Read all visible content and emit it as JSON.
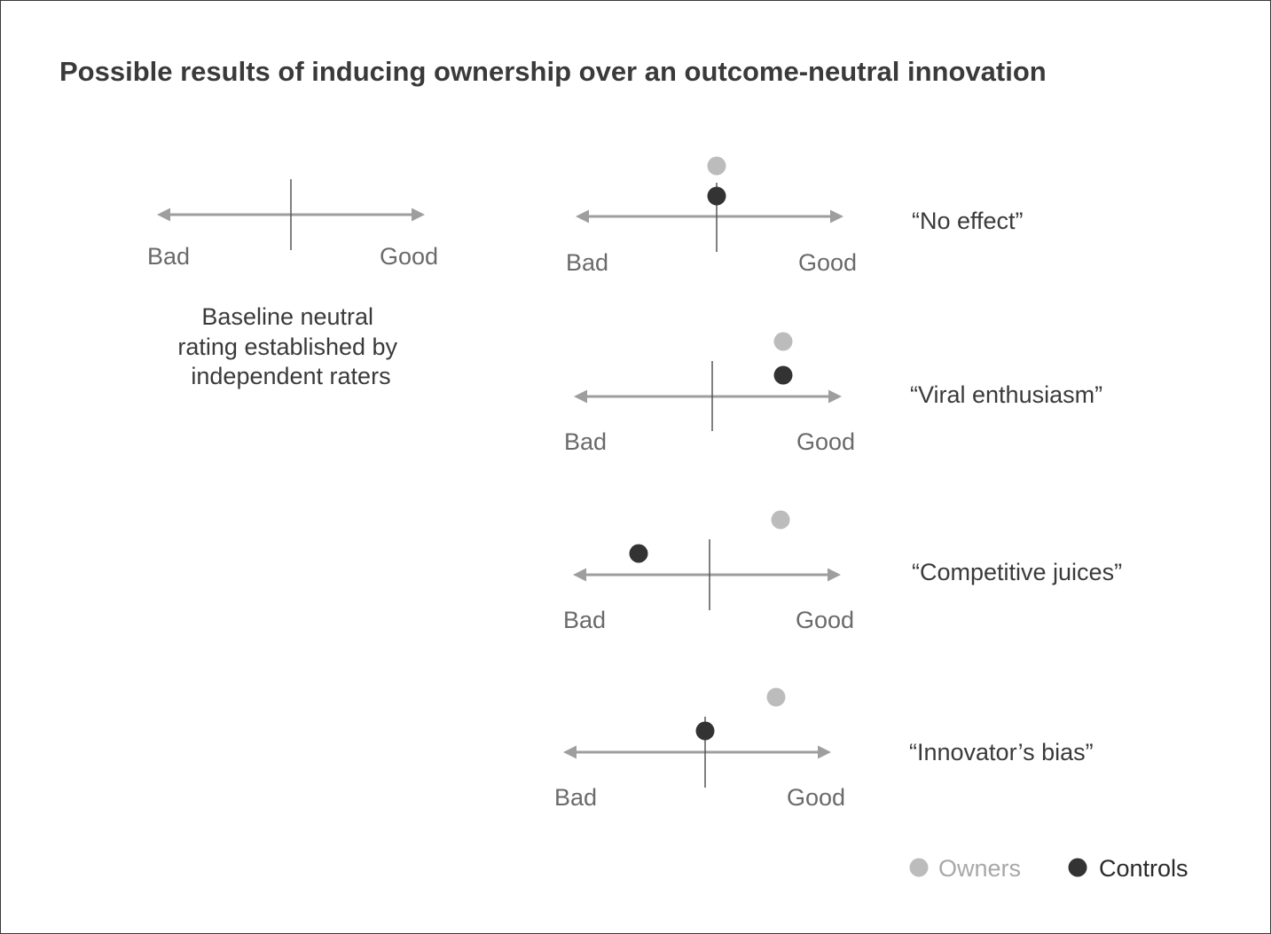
{
  "title": "Possible results of inducing ownership over an outcome-neutral innovation",
  "colors": {
    "axis": "#9e9e9e",
    "divider": "#555555",
    "owners": "#bcbcbc",
    "controls": "#333333",
    "text": "#3a3a3a",
    "axis_text": "#6a6a6a"
  },
  "axis_labels": {
    "bad": "Bad",
    "good": "Good"
  },
  "baseline": {
    "caption": [
      "Baseline neutral",
      "rating established by",
      "independent raters"
    ]
  },
  "scenarios": [
    {
      "label": "“No effect”",
      "owners": 0.0,
      "controls": 0.0
    },
    {
      "label": "“Viral enthusiasm”",
      "owners": 0.5,
      "controls": 0.5
    },
    {
      "label": "“Competitive juices”",
      "owners": 0.5,
      "controls": -0.5
    },
    {
      "label": "“Innovator’s bias”",
      "owners": 0.5,
      "controls": 0.0
    }
  ],
  "legend": {
    "owners": "Owners",
    "controls": "Controls"
  }
}
